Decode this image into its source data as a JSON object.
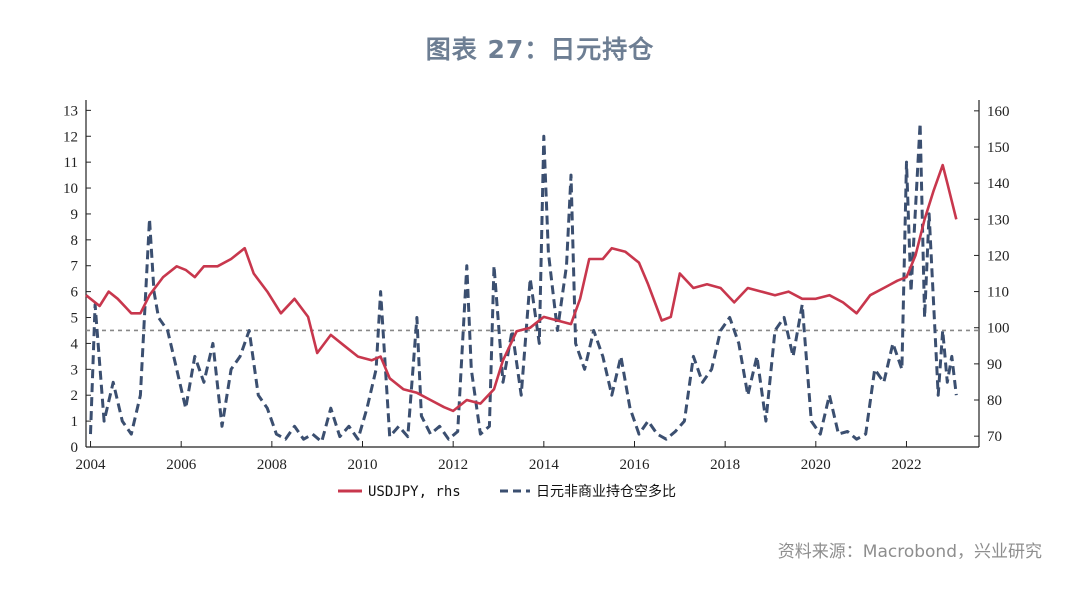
{
  "title": "图表 27：日元持仓",
  "source": "资料来源：Macrobond，兴业研究",
  "chart_data": {
    "type": "line",
    "x_ticks": [
      "2004",
      "2006",
      "2008",
      "2010",
      "2012",
      "2014",
      "2016",
      "2018",
      "2020",
      "2022"
    ],
    "xlim": [
      2003.9,
      2023.6
    ],
    "y_left": {
      "min": 0,
      "max": 13.4,
      "ticks": [
        0,
        1,
        2,
        3,
        4,
        5,
        6,
        7,
        8,
        9,
        10,
        11,
        12,
        13
      ]
    },
    "y_right": {
      "min": 67,
      "max": 163,
      "ticks": [
        70,
        80,
        90,
        100,
        110,
        120,
        130,
        140,
        150,
        160
      ]
    },
    "reference_line": {
      "axis": "left",
      "value": 4.5,
      "style": "dotted",
      "color": "#888888"
    },
    "series": [
      {
        "name": "USDJPY, rhs",
        "axis": "right",
        "color": "#c8374d",
        "style": "solid",
        "x": [
          2003.9,
          2004.2,
          2004.4,
          2004.6,
          2004.9,
          2005.1,
          2005.3,
          2005.6,
          2005.9,
          2006.1,
          2006.3,
          2006.5,
          2006.8,
          2007.1,
          2007.4,
          2007.6,
          2007.9,
          2008.2,
          2008.5,
          2008.8,
          2009.0,
          2009.3,
          2009.6,
          2009.9,
          2010.2,
          2010.4,
          2010.6,
          2010.9,
          2011.2,
          2011.5,
          2011.8,
          2012.0,
          2012.3,
          2012.6,
          2012.9,
          2013.1,
          2013.4,
          2013.7,
          2014.0,
          2014.3,
          2014.6,
          2014.8,
          2015.0,
          2015.3,
          2015.5,
          2015.8,
          2016.1,
          2016.3,
          2016.6,
          2016.8,
          2017.0,
          2017.3,
          2017.6,
          2017.9,
          2018.2,
          2018.5,
          2018.8,
          2019.1,
          2019.4,
          2019.7,
          2020.0,
          2020.3,
          2020.6,
          2020.9,
          2021.2,
          2021.5,
          2021.8,
          2022.0,
          2022.2,
          2022.4,
          2022.6,
          2022.8,
          2022.9,
          2023.1
        ],
        "values": [
          109,
          106,
          110,
          108,
          104,
          104,
          109,
          114,
          117,
          116,
          114,
          117,
          117,
          119,
          122,
          115,
          110,
          104,
          108,
          103,
          93,
          98,
          95,
          92,
          91,
          92,
          86,
          83,
          82,
          80,
          78,
          77,
          80,
          79,
          83,
          91,
          99,
          100,
          103,
          102,
          101,
          108,
          119,
          119,
          122,
          121,
          118,
          112,
          102,
          103,
          115,
          111,
          112,
          111,
          107,
          111,
          110,
          109,
          110,
          108,
          108,
          109,
          107,
          104,
          109,
          111,
          113,
          114,
          120,
          130,
          138,
          145,
          140,
          130
        ]
      },
      {
        "name": "日元非商业持仓空多比",
        "axis": "left",
        "color": "#3b4f70",
        "style": "dashed",
        "x": [
          2004.0,
          2004.1,
          2004.3,
          2004.5,
          2004.7,
          2004.9,
          2005.1,
          2005.3,
          2005.4,
          2005.5,
          2005.7,
          2005.9,
          2006.1,
          2006.3,
          2006.5,
          2006.7,
          2006.9,
          2007.1,
          2007.3,
          2007.5,
          2007.7,
          2007.9,
          2008.1,
          2008.3,
          2008.5,
          2008.7,
          2008.9,
          2009.1,
          2009.3,
          2009.5,
          2009.7,
          2009.9,
          2010.1,
          2010.3,
          2010.4,
          2010.6,
          2010.8,
          2011.0,
          2011.2,
          2011.3,
          2011.5,
          2011.7,
          2011.9,
          2012.1,
          2012.3,
          2012.4,
          2012.6,
          2012.8,
          2012.9,
          2013.1,
          2013.3,
          2013.5,
          2013.7,
          2013.9,
          2014.0,
          2014.1,
          2014.3,
          2014.5,
          2014.6,
          2014.7,
          2014.9,
          2015.1,
          2015.3,
          2015.5,
          2015.7,
          2015.9,
          2016.1,
          2016.3,
          2016.5,
          2016.7,
          2016.9,
          2017.1,
          2017.3,
          2017.5,
          2017.7,
          2017.9,
          2018.1,
          2018.3,
          2018.5,
          2018.7,
          2018.9,
          2019.1,
          2019.3,
          2019.5,
          2019.7,
          2019.9,
          2020.1,
          2020.3,
          2020.5,
          2020.7,
          2020.9,
          2021.1,
          2021.3,
          2021.5,
          2021.7,
          2021.9,
          2022.0,
          2022.1,
          2022.3,
          2022.4,
          2022.5,
          2022.7,
          2022.8,
          2022.9,
          2023.0,
          2023.1
        ],
        "values": [
          0.5,
          5.5,
          1.0,
          2.5,
          1.0,
          0.5,
          2.0,
          8.8,
          6.0,
          5.0,
          4.5,
          3.0,
          1.5,
          3.5,
          2.5,
          4.0,
          0.8,
          3.0,
          3.5,
          4.5,
          2.0,
          1.5,
          0.5,
          0.3,
          0.8,
          0.3,
          0.5,
          0.2,
          1.5,
          0.4,
          0.8,
          0.3,
          1.5,
          3.0,
          6.0,
          0.4,
          0.8,
          0.4,
          5.0,
          1.2,
          0.5,
          0.8,
          0.3,
          0.6,
          7.0,
          3.0,
          0.5,
          0.8,
          7.0,
          2.5,
          4.5,
          2.0,
          6.5,
          4.0,
          12.0,
          7.5,
          4.5,
          7.0,
          10.5,
          4.0,
          3.0,
          4.5,
          3.5,
          2.0,
          3.5,
          1.5,
          0.5,
          1.0,
          0.5,
          0.3,
          0.6,
          1.0,
          3.5,
          2.5,
          3.0,
          4.5,
          5.0,
          4.0,
          2.0,
          3.5,
          1.0,
          4.5,
          5.0,
          3.5,
          5.5,
          1.0,
          0.5,
          2.0,
          0.5,
          0.6,
          0.3,
          0.5,
          3.0,
          2.5,
          4.0,
          3.0,
          11.0,
          6.0,
          12.5,
          5.0,
          9.0,
          2.0,
          4.5,
          2.5,
          3.5,
          2.0
        ]
      }
    ],
    "legend": {
      "placement": "bottom-center",
      "entries": [
        "USDJPY, rhs",
        "日元非商业持仓空多比"
      ]
    }
  }
}
